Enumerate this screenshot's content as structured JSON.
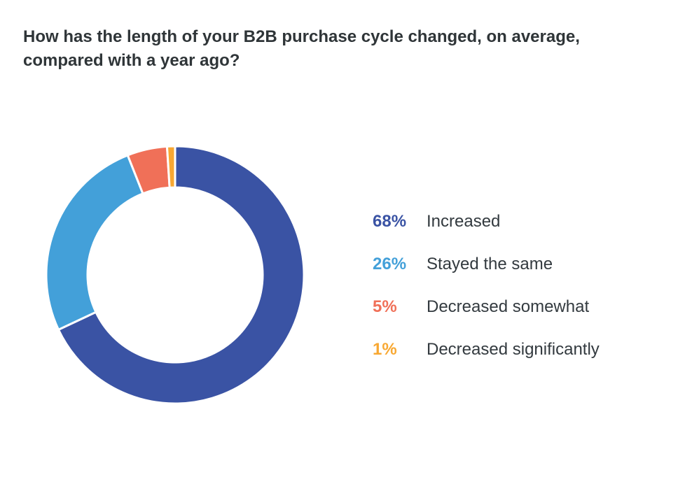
{
  "chart_data": {
    "type": "pie",
    "donut": true,
    "title": "How has the length of your B2B purchase cycle changed, on average, compared with a year ago?",
    "slices": [
      {
        "label": "Increased",
        "value": 68,
        "display": "68%",
        "color": "#3A53A4"
      },
      {
        "label": "Stayed the same",
        "value": 26,
        "display": "26%",
        "color": "#43A0D9"
      },
      {
        "label": "Decreased somewhat",
        "value": 5,
        "display": "5%",
        "color": "#F07058"
      },
      {
        "label": "Decreased significantly",
        "value": 1,
        "display": "1%",
        "color": "#F8A832"
      }
    ],
    "legend_position": "right"
  }
}
